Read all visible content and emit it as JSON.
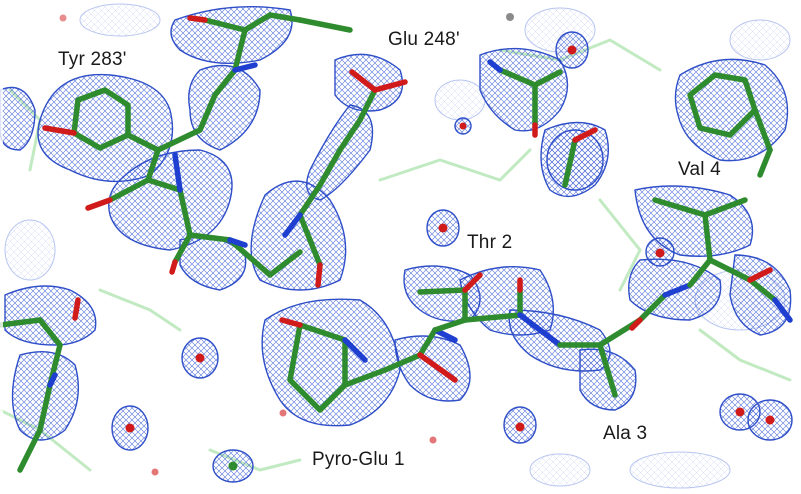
{
  "residue_labels": {
    "tyr283": "Tyr 283'",
    "glu248": "Glu 248'",
    "val4": "Val 4",
    "thr2": "Thr 2",
    "pyroglu1": "Pyro-Glu 1",
    "ala3": "Ala 3"
  },
  "colors": {
    "carbon": "#2e8b2e",
    "nitrogen": "#1f3fd0",
    "oxygen": "#d11b1b",
    "density_mesh": "#3050c8",
    "background_chain": "#7ccf7c"
  }
}
